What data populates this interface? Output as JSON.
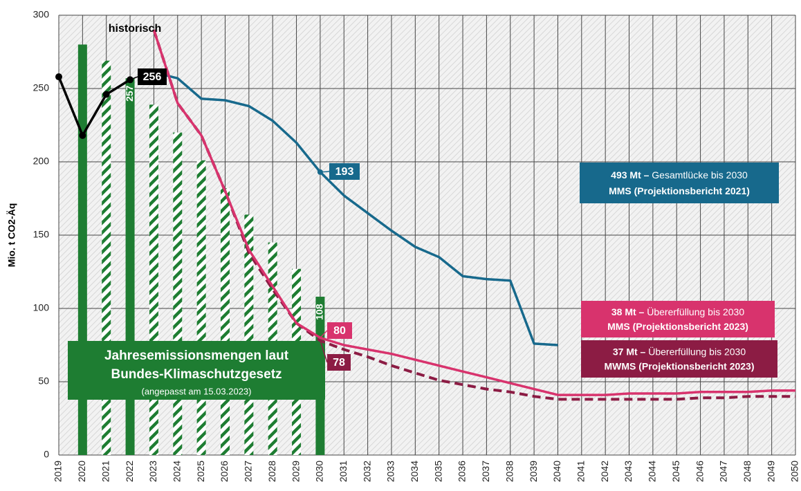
{
  "chart_data": {
    "type": "line",
    "ylabel": "Mio. t CO2-Äq",
    "categories": [
      "2019",
      "2020",
      "2021",
      "2022",
      "2023",
      "2024",
      "2025",
      "2026",
      "2027",
      "2028",
      "2029",
      "2030",
      "2031",
      "2032",
      "2033",
      "2034",
      "2035",
      "2036",
      "2037",
      "2038",
      "2039",
      "2040",
      "2041",
      "2042",
      "2043",
      "2044",
      "2045",
      "2046",
      "2047",
      "2048",
      "2049",
      "2050"
    ],
    "ylim": [
      0,
      300
    ],
    "yticks": [
      0,
      50,
      100,
      150,
      200,
      250,
      300
    ],
    "grid": true,
    "bars": {
      "color": "#1e7d32",
      "values": [
        null,
        280,
        269,
        257,
        239,
        220,
        201,
        182,
        164,
        145,
        127,
        108,
        null,
        null,
        null,
        null,
        null,
        null,
        null,
        null,
        null,
        null,
        null,
        null,
        null,
        null,
        null,
        null,
        null,
        null,
        null,
        null
      ],
      "patterns": [
        null,
        "solid",
        "hatched",
        "solid",
        "hatched",
        "hatched",
        "hatched",
        "hatched",
        "hatched",
        "hatched",
        "hatched",
        "solid",
        null,
        null,
        null,
        null,
        null,
        null,
        null,
        null,
        null,
        null,
        null,
        null,
        null,
        null,
        null,
        null,
        null,
        null,
        null,
        null
      ],
      "label": [
        "Jahresemissionsmengen laut",
        "Bundes-Klimaschutzgesetz"
      ],
      "note": "(angepasst am 15.03.2023)"
    },
    "series": [
      {
        "name": "historisch",
        "color": "#000000",
        "dash": false,
        "values": [
          258,
          218,
          246,
          256,
          null,
          null,
          null,
          null,
          null,
          null,
          null,
          null,
          null,
          null,
          null,
          null,
          null,
          null,
          null,
          null,
          null,
          null,
          null,
          null,
          null,
          null,
          null,
          null,
          null,
          null,
          null,
          null
        ]
      },
      {
        "name": "MMS (Projektionsbericht 2021)",
        "color": "#17698c",
        "dash": false,
        "values": [
          null,
          null,
          null,
          null,
          261,
          257,
          243,
          242,
          238,
          228,
          213,
          193,
          177,
          165,
          153,
          142,
          135,
          122,
          120,
          119,
          76,
          75,
          null,
          null,
          null,
          null,
          null,
          null,
          null,
          null,
          null,
          null
        ]
      },
      {
        "name": "MWMS (Projektionsbericht 2023)",
        "color": "#8c1c44",
        "dash": true,
        "values": [
          null,
          null,
          null,
          null,
          290,
          240,
          218,
          180,
          138,
          113,
          90,
          78,
          72,
          67,
          61,
          56,
          51,
          48,
          45,
          43,
          40,
          38,
          38,
          38,
          38,
          38,
          38,
          39,
          39,
          40,
          40,
          40
        ]
      },
      {
        "name": "MMS (Projektionsbericht 2023)",
        "color": "#d8336d",
        "dash": false,
        "values": [
          null,
          null,
          null,
          null,
          290,
          240,
          218,
          180,
          140,
          115,
          90,
          80,
          75,
          72,
          69,
          65,
          61,
          57,
          53,
          49,
          45,
          41,
          41,
          41,
          42,
          42,
          42,
          43,
          43,
          43,
          44,
          44
        ]
      }
    ],
    "boxes": [
      {
        "series": 1,
        "lead": "493 Mt –",
        "text": "Gesamtlücke bis 2030"
      },
      {
        "series": 3,
        "lead": "38 Mt –",
        "text": "Übererfüllung bis 2030"
      },
      {
        "series": 2,
        "lead": "37 Mt –",
        "text": "Übererfüllung bis 2030"
      }
    ]
  }
}
